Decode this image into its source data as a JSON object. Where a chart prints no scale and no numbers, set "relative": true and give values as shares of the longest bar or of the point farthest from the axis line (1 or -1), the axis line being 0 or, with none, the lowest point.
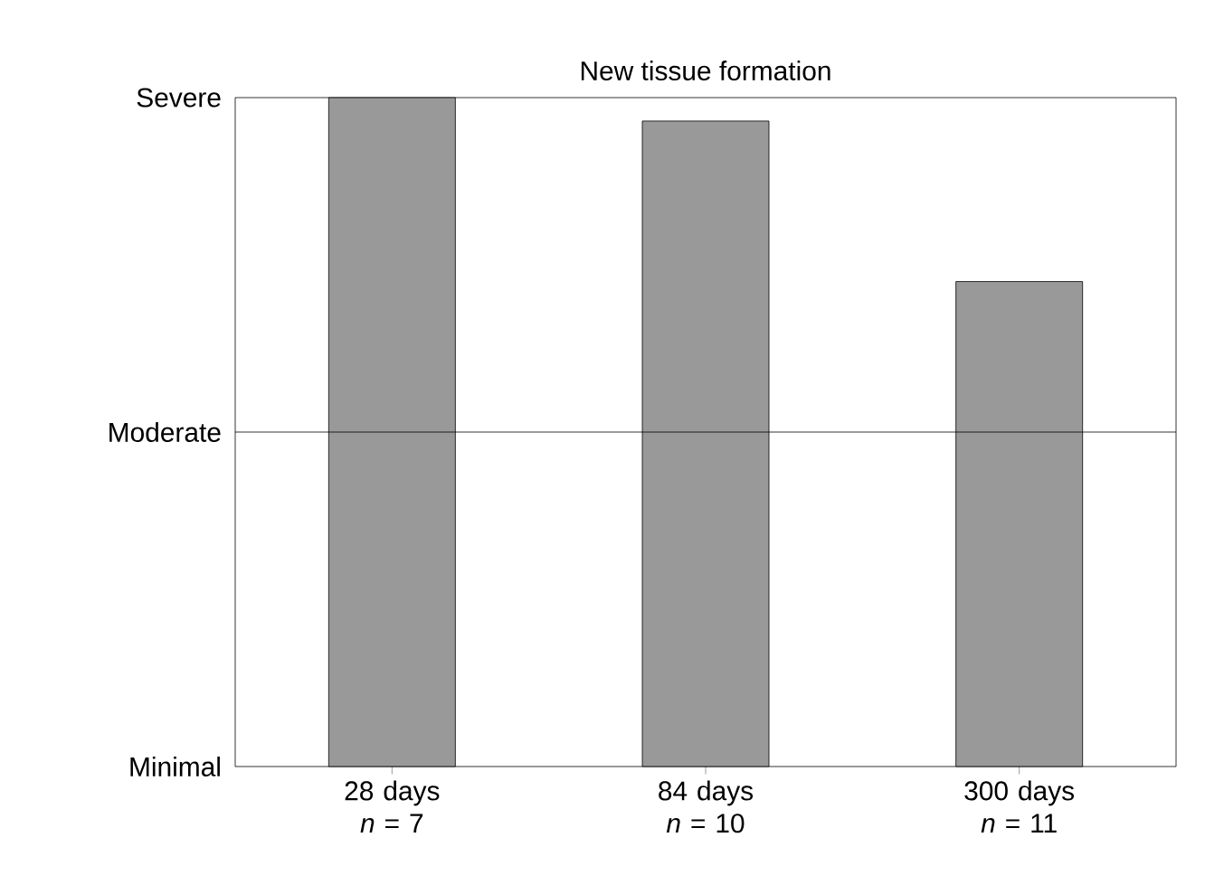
{
  "chart_data": {
    "type": "bar",
    "title": "New tissue formation",
    "categories": [
      "28 days *n* = 7",
      "84 days *n* = 10",
      "300 days *n* = 11"
    ],
    "values": [
      1,
      0.965,
      0.725
    ],
    "color": "#999999",
    "relative": true,
    "ref_lines": [
      {
        "axis": "y",
        "value": 0.5,
        "label": "Moderate"
      }
    ],
    "annotations": [
      "Minimal",
      "Severe"
    ]
  }
}
